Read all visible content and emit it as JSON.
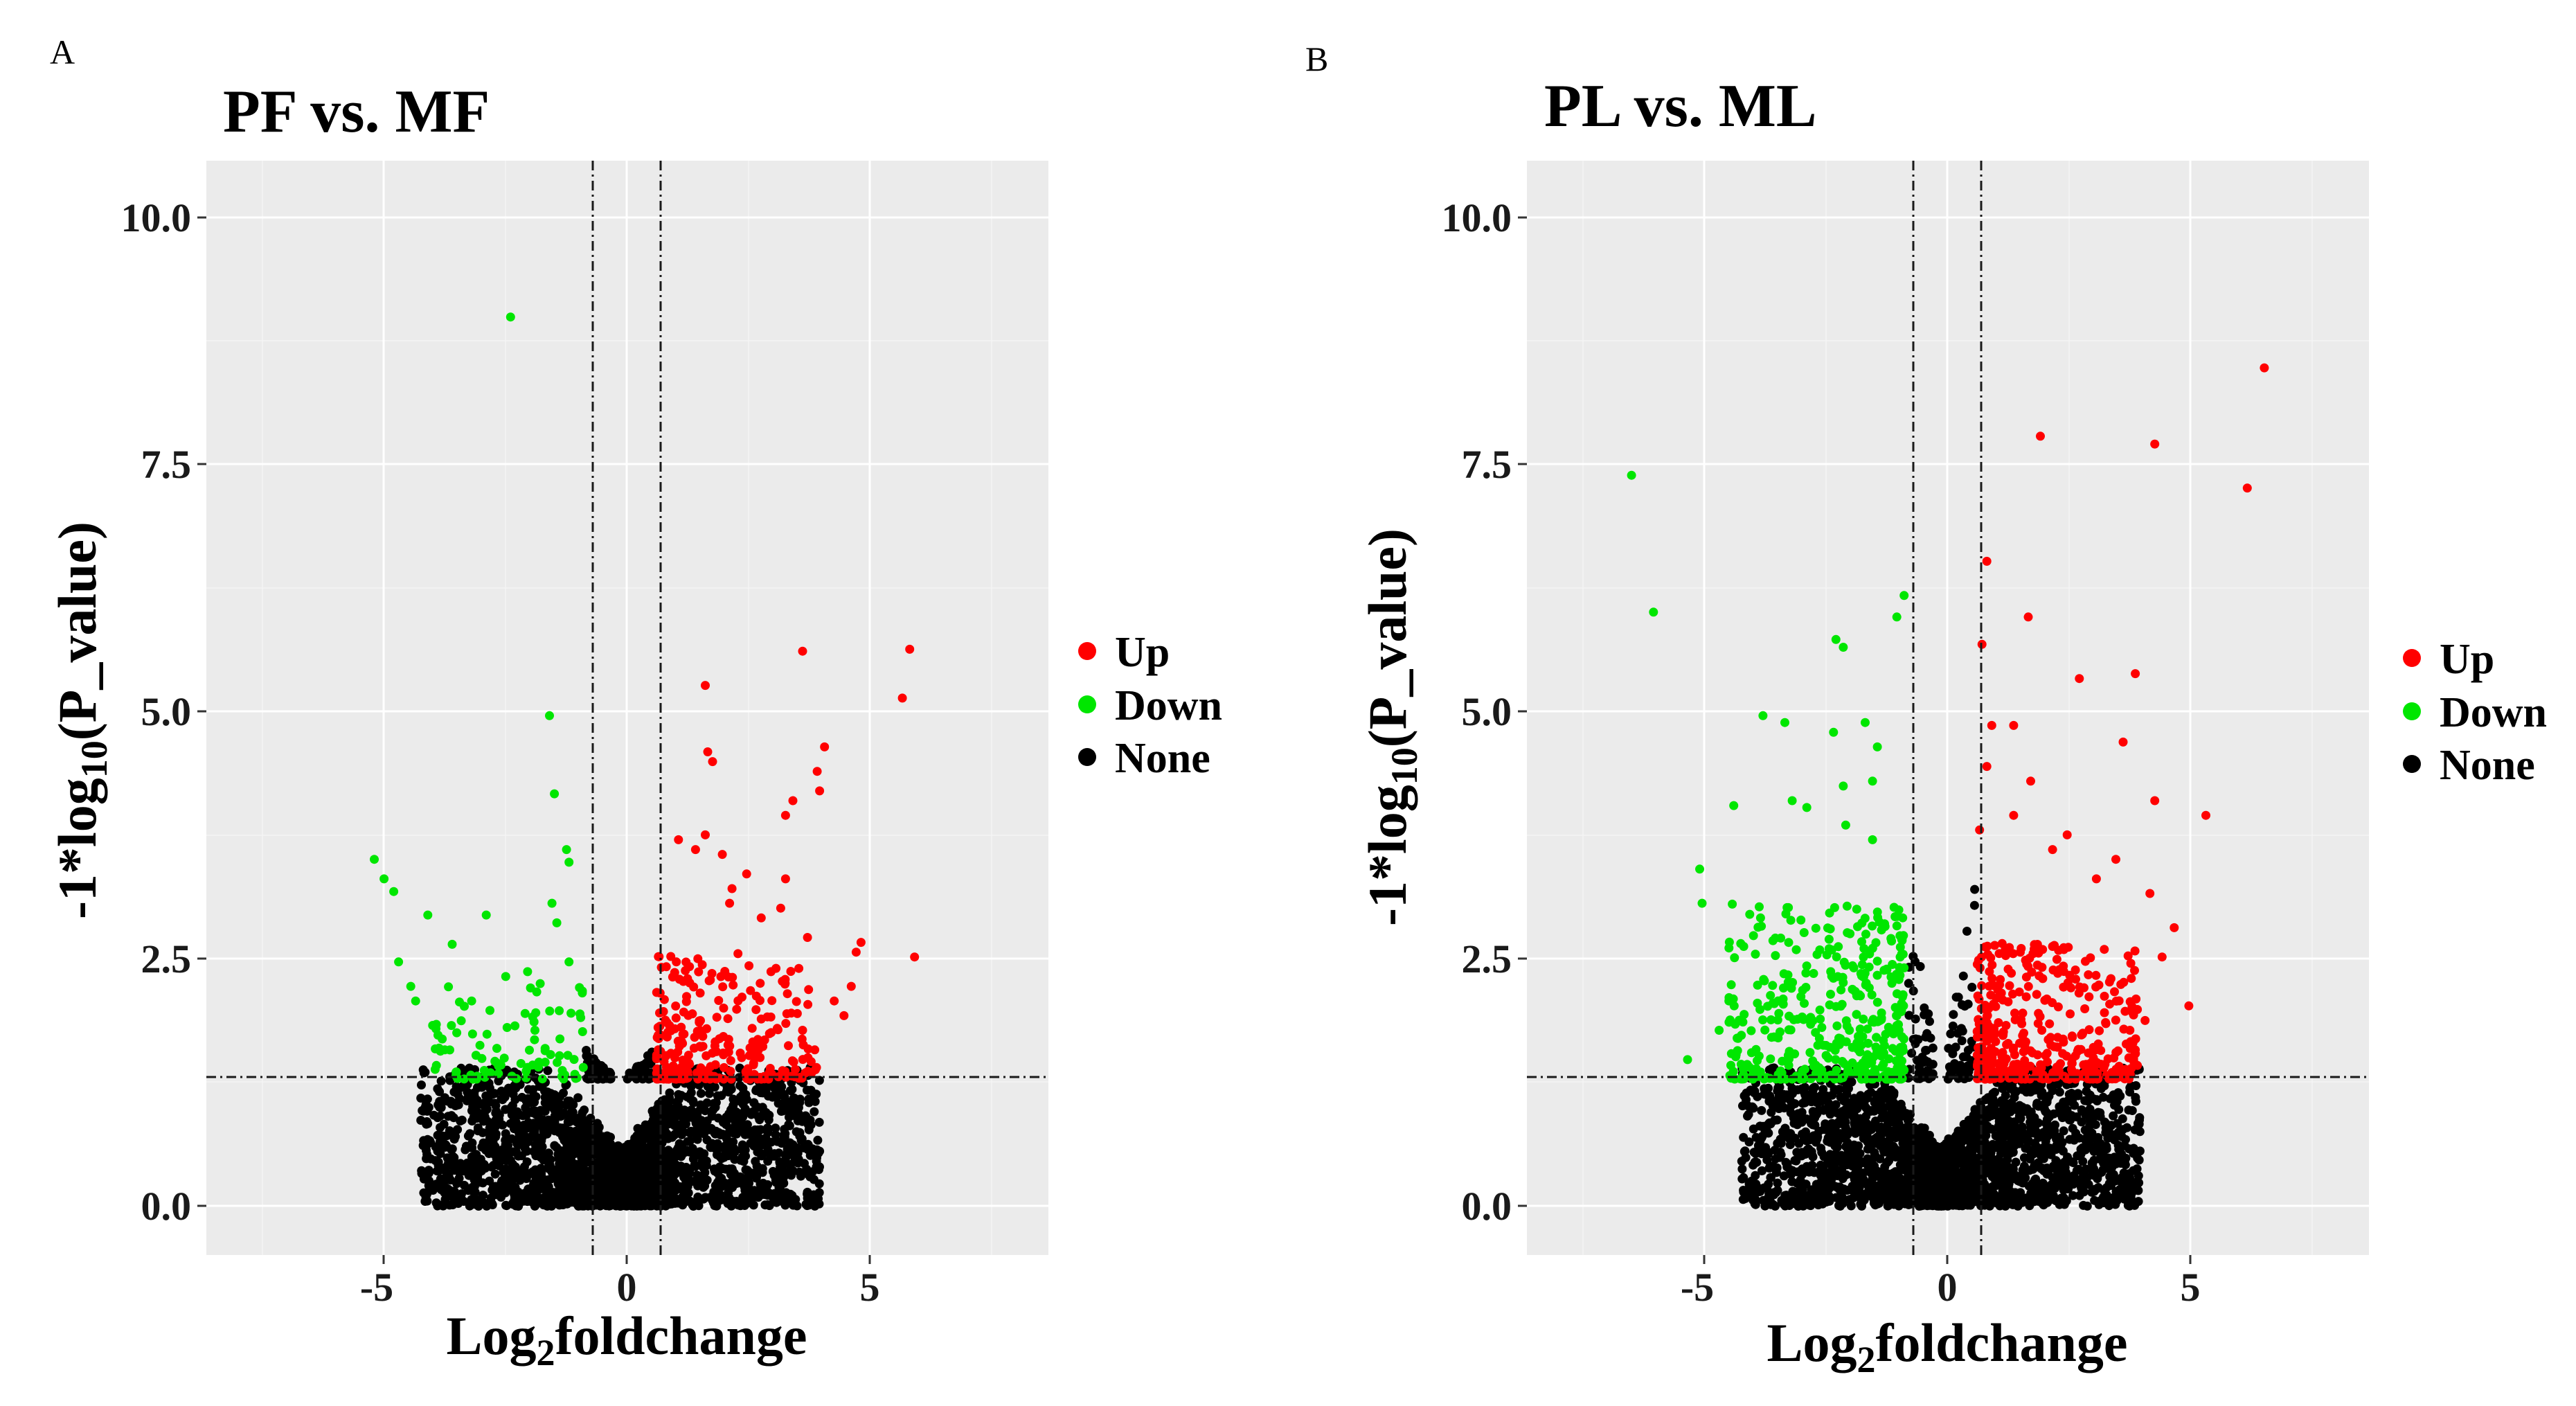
{
  "colors": {
    "up": "#ff0000",
    "down": "#00e600",
    "none": "#000000",
    "panel_bg": "#ebebeb"
  },
  "chart_data": [
    {
      "type": "scatter",
      "panel_letter": "A",
      "title": "PF vs. MF",
      "xlabel_base": "Log",
      "xlabel_sub": "2",
      "xlabel_rest": "foldchange",
      "ylabel_prefix": "-1*log",
      "ylabel_sub": "10",
      "ylabel_rest": "(P_value)",
      "xlim": [
        -8.5,
        8.8
      ],
      "ylim": [
        -0.5,
        10.7
      ],
      "x_ticks": [
        -5,
        0,
        5
      ],
      "x_tick_labels": [
        "-5",
        "0",
        "5"
      ],
      "y_ticks": [
        0,
        2.5,
        5,
        7.5,
        10
      ],
      "y_tick_labels": [
        "0.0",
        "2.5",
        "5.0",
        "7.5",
        "10.0"
      ],
      "fc_thresholds": [
        -0.7,
        0.7
      ],
      "p_threshold": 1.3,
      "legend": [
        {
          "key": "up",
          "label": "Up"
        },
        {
          "key": "down",
          "label": "Down"
        },
        {
          "key": "none",
          "label": "None"
        }
      ],
      "series": [
        {
          "name": "Up",
          "points": [
            [
              3.75,
              5.68
            ],
            [
              5.95,
              5.7
            ],
            [
              5.8,
              5.2
            ],
            [
              1.75,
              5.33
            ],
            [
              1.8,
              4.65
            ],
            [
              1.9,
              4.55
            ],
            [
              4.2,
              4.7
            ],
            [
              4.05,
              4.45
            ],
            [
              4.1,
              4.25
            ],
            [
              3.55,
              4.15
            ],
            [
              3.4,
              4.0
            ],
            [
              1.75,
              3.8
            ],
            [
              1.2,
              3.75
            ],
            [
              1.55,
              3.65
            ],
            [
              2.1,
              3.6
            ],
            [
              2.6,
              3.4
            ],
            [
              3.4,
              3.35
            ],
            [
              2.3,
              3.25
            ],
            [
              2.25,
              3.1
            ],
            [
              2.9,
              2.95
            ],
            [
              3.3,
              3.05
            ],
            [
              3.85,
              2.75
            ],
            [
              4.95,
              2.7
            ],
            [
              4.85,
              2.6
            ],
            [
              6.05,
              2.55
            ],
            [
              2.8,
              2.15
            ],
            [
              3.1,
              2.4
            ],
            [
              0.95,
              2.45
            ],
            [
              1.3,
              2.3
            ],
            [
              4.4,
              2.1
            ],
            [
              4.75,
              2.25
            ],
            [
              4.6,
              1.95
            ],
            [
              3.75,
              1.8
            ],
            [
              4.0,
              1.6
            ],
            [
              3.6,
              1.4
            ]
          ]
        },
        {
          "name": "Down",
          "points": [
            [
              -2.25,
              9.1
            ],
            [
              -1.45,
              5.02
            ],
            [
              -1.35,
              4.22
            ],
            [
              -1.1,
              3.65
            ],
            [
              -1.05,
              3.52
            ],
            [
              -5.05,
              3.55
            ],
            [
              -4.85,
              3.35
            ],
            [
              -4.65,
              3.22
            ],
            [
              -3.95,
              2.98
            ],
            [
              -2.75,
              2.98
            ],
            [
              -1.4,
              3.1
            ],
            [
              -1.3,
              2.9
            ],
            [
              -3.45,
              2.68
            ],
            [
              -4.55,
              2.5
            ],
            [
              -1.05,
              2.5
            ],
            [
              -4.3,
              2.25
            ],
            [
              -4.2,
              2.1
            ],
            [
              -3.05,
              2.1
            ],
            [
              -2.35,
              2.35
            ],
            [
              -1.9,
              2.4
            ],
            [
              -1.25,
              2.0
            ],
            [
              -3.85,
              1.85
            ],
            [
              -3.6,
              1.6
            ],
            [
              -3.8,
              1.4
            ],
            [
              -1.75,
              1.8
            ]
          ]
        },
        {
          "name": "None",
          "points": []
        }
      ]
    },
    {
      "type": "scatter",
      "panel_letter": "B",
      "title": "PL vs. ML",
      "xlabel_base": "Log",
      "xlabel_sub": "2",
      "xlabel_rest": "foldchange",
      "ylabel_prefix": "-1*log",
      "ylabel_sub": "10",
      "ylabel_rest": "(P_value)",
      "xlim": [
        -8.5,
        8.8
      ],
      "ylim": [
        -0.5,
        10.7
      ],
      "x_ticks": [
        -5,
        0,
        5
      ],
      "x_tick_labels": [
        "-5",
        "0",
        "5"
      ],
      "y_ticks": [
        0,
        2.5,
        5,
        7.5,
        10
      ],
      "y_tick_labels": [
        "0.0",
        "2.5",
        "5.0",
        "7.5",
        "10.0"
      ],
      "fc_thresholds": [
        -0.7,
        0.7
      ],
      "p_threshold": 1.3,
      "legend": [
        {
          "key": "up",
          "label": "Up"
        },
        {
          "key": "down",
          "label": "Down"
        },
        {
          "key": "none",
          "label": "None"
        }
      ],
      "series": [
        {
          "name": "Up",
          "points": [
            [
              6.65,
              8.58
            ],
            [
              2.05,
              7.88
            ],
            [
              4.4,
              7.8
            ],
            [
              6.3,
              7.35
            ],
            [
              0.95,
              6.6
            ],
            [
              1.8,
              6.03
            ],
            [
              0.85,
              5.75
            ],
            [
              4.0,
              5.45
            ],
            [
              2.85,
              5.4
            ],
            [
              1.05,
              4.92
            ],
            [
              1.5,
              4.92
            ],
            [
              3.75,
              4.75
            ],
            [
              0.95,
              4.5
            ],
            [
              1.85,
              4.35
            ],
            [
              4.4,
              4.15
            ],
            [
              5.45,
              4.0
            ],
            [
              1.5,
              4.0
            ],
            [
              0.8,
              3.85
            ],
            [
              2.6,
              3.8
            ],
            [
              2.3,
              3.65
            ],
            [
              3.6,
              3.55
            ],
            [
              3.2,
              3.35
            ],
            [
              4.3,
              3.2
            ],
            [
              4.8,
              2.85
            ],
            [
              4.55,
              2.55
            ],
            [
              5.1,
              2.05
            ],
            [
              4.2,
              1.9
            ],
            [
              4.0,
              1.6
            ],
            [
              3.8,
              1.4
            ]
          ]
        },
        {
          "name": "Down",
          "points": [
            [
              -6.35,
              7.48
            ],
            [
              -5.9,
              6.08
            ],
            [
              -0.75,
              6.25
            ],
            [
              -0.9,
              6.03
            ],
            [
              -2.15,
              5.8
            ],
            [
              -2.0,
              5.72
            ],
            [
              -3.65,
              5.02
            ],
            [
              -3.2,
              4.95
            ],
            [
              -1.55,
              4.95
            ],
            [
              -2.2,
              4.85
            ],
            [
              -1.3,
              4.7
            ],
            [
              -1.4,
              4.35
            ],
            [
              -2.0,
              4.3
            ],
            [
              -3.05,
              4.15
            ],
            [
              -2.75,
              4.08
            ],
            [
              -4.25,
              4.1
            ],
            [
              -1.95,
              3.9
            ],
            [
              -1.4,
              3.75
            ],
            [
              -4.95,
              3.45
            ],
            [
              -4.9,
              3.1
            ],
            [
              -3.7,
              2.95
            ],
            [
              -5.2,
              1.5
            ],
            [
              -4.35,
              2.1
            ],
            [
              -4.55,
              1.8
            ],
            [
              -4.2,
              1.55
            ]
          ]
        },
        {
          "name": "None",
          "points": []
        }
      ]
    }
  ]
}
